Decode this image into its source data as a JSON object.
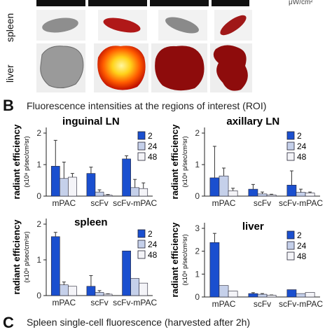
{
  "image_panel": {
    "unit_label": "μW/cm²",
    "rows": [
      "spleen",
      "liver"
    ]
  },
  "section_b": {
    "letter": "B",
    "title": "Fluorescence intensities at the regions of interest (ROI)"
  },
  "section_c": {
    "letter": "C",
    "title": "Spleen single-cell fluorescence (harvested after 2h)"
  },
  "colors": {
    "2": "#1a4fcf",
    "24": "#c5d0ea",
    "48": "#f4f4f8"
  },
  "chart_data": [
    {
      "type": "bar",
      "title": "inguinal LN",
      "ylabel": "radiant efficiency",
      "ylabel_unit": "(x10⁸ p/sec/cm²sr)",
      "categories": [
        "mPAC",
        "scFv",
        "scFv-mPAC"
      ],
      "ylim": [
        0,
        2
      ],
      "yticks": [
        "0",
        "1",
        "2"
      ],
      "legend": [
        "2",
        "24",
        "48"
      ],
      "series": [
        {
          "name": "2",
          "values": [
            0.95,
            0.72,
            1.18
          ],
          "errors": [
            0.82,
            0.2,
            0.1
          ]
        },
        {
          "name": "24",
          "values": [
            0.56,
            0.13,
            0.27
          ],
          "errors": [
            0.52,
            0.07,
            0.26
          ]
        },
        {
          "name": "48",
          "values": [
            0.6,
            0.03,
            0.24
          ],
          "errors": [
            0.12,
            0.02,
            0.18
          ]
        }
      ]
    },
    {
      "type": "bar",
      "title": "axillary LN",
      "ylabel": "radiant efficiency",
      "ylabel_unit": "(x10⁸ p/sec/cm²sr)",
      "categories": [
        "mPAC",
        "scFv",
        "scFv-mPAC"
      ],
      "ylim": [
        0,
        2
      ],
      "yticks": [
        "0",
        "1",
        "2"
      ],
      "legend": [
        "2",
        "24",
        "48"
      ],
      "series": [
        {
          "name": "2",
          "values": [
            0.58,
            0.22,
            0.35
          ],
          "errors": [
            1.0,
            0.15,
            0.45
          ]
        },
        {
          "name": "24",
          "values": [
            0.64,
            0.07,
            0.12
          ],
          "errors": [
            0.25,
            0.06,
            0.1
          ]
        },
        {
          "name": "48",
          "values": [
            0.17,
            0.04,
            0.1
          ],
          "errors": [
            0.08,
            0.02,
            0.03
          ]
        }
      ]
    },
    {
      "type": "bar",
      "title": "spleen",
      "ylabel": "radiant efficiency",
      "ylabel_unit": "(x10⁸ p/sec/cm²sr)",
      "categories": [
        "mPAC",
        "scFv",
        "scFv-mPAC"
      ],
      "ylim": [
        0,
        2
      ],
      "yticks": [
        "0",
        "1",
        "2"
      ],
      "legend": [
        "2",
        "24",
        "48"
      ],
      "series": [
        {
          "name": "2",
          "values": [
            1.65,
            0.26,
            1.25
          ],
          "errors": [
            0.12,
            0.3,
            0.0
          ]
        },
        {
          "name": "24",
          "values": [
            0.3,
            0.09,
            0.48
          ],
          "errors": [
            0.08,
            0.05,
            0.0
          ]
        },
        {
          "name": "48",
          "values": [
            0.26,
            0.04,
            0.35
          ],
          "errors": [
            0.0,
            0.01,
            0.0
          ]
        }
      ]
    },
    {
      "type": "bar",
      "title": "liver",
      "ylabel": "radiant efficiency",
      "ylabel_unit": "(x10⁸ p/sec/cm²sr)",
      "categories": [
        "mPAC",
        "scFv",
        "scFv-mPAC"
      ],
      "ylim": [
        0,
        3
      ],
      "yticks": [
        "0",
        "1",
        "2",
        "3"
      ],
      "legend": [
        "2",
        "24",
        "48"
      ],
      "series": [
        {
          "name": "2",
          "values": [
            2.38,
            0.15,
            0.32
          ],
          "errors": [
            0.4,
            0.04,
            0.0
          ]
        },
        {
          "name": "24",
          "values": [
            0.5,
            0.12,
            0.15
          ],
          "errors": [
            0.0,
            0.03,
            0.0
          ]
        },
        {
          "name": "48",
          "values": [
            0.26,
            0.08,
            0.2
          ],
          "errors": [
            0.0,
            0.01,
            0.0
          ]
        }
      ]
    }
  ]
}
